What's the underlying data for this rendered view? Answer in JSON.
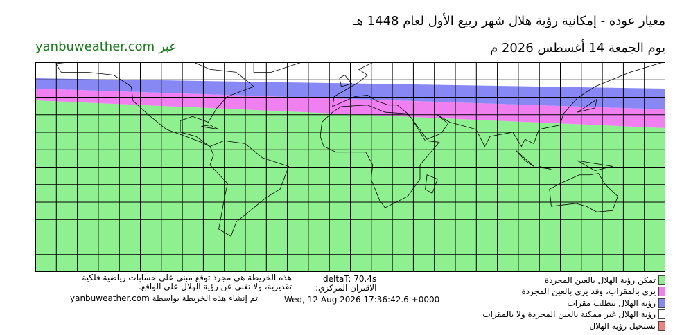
{
  "header": {
    "title": "معيار عودة - إمكانية رؤية هلال شهر ربيع الأول لعام 1448 هـ",
    "date": "يوم الجمعة 14 أغسطس 2026 م",
    "site": "عبر yanbuweather.com"
  },
  "legend": [
    {
      "label": "تمكن رؤية الهلال بالعين المجردة",
      "color": "#8ef08e"
    },
    {
      "label": "يرى بالمقراب، وقد يرى بالعين المجردة",
      "color": "#f080f0"
    },
    {
      "label": "رؤية الهلال تتطلب مقراب",
      "color": "#8888f4"
    },
    {
      "label": "رؤية الهلال غير ممكنة بالعين المجردة ولا بالمقراب",
      "color": "#ffffff"
    },
    {
      "label": "تستحيل رؤية الهلال",
      "color": "#f08080"
    }
  ],
  "footer": {
    "disclaimer": [
      "هذه الخريطة هي مجرد توقع مبني على حسابات رياضية فلكية",
      "تقديرية، ولا تغني عن رؤية الهلال على الواقع."
    ],
    "delta_t": "deltaT: 70.4s",
    "conjunction_label": "الاقتران المركزي:",
    "conjunction_time": "Wed, 12 Aug 2026 17:36:42.6 +0000",
    "credit": "تم إنشاء هذه الخريطة بواسطة yanbuweather.com"
  }
}
